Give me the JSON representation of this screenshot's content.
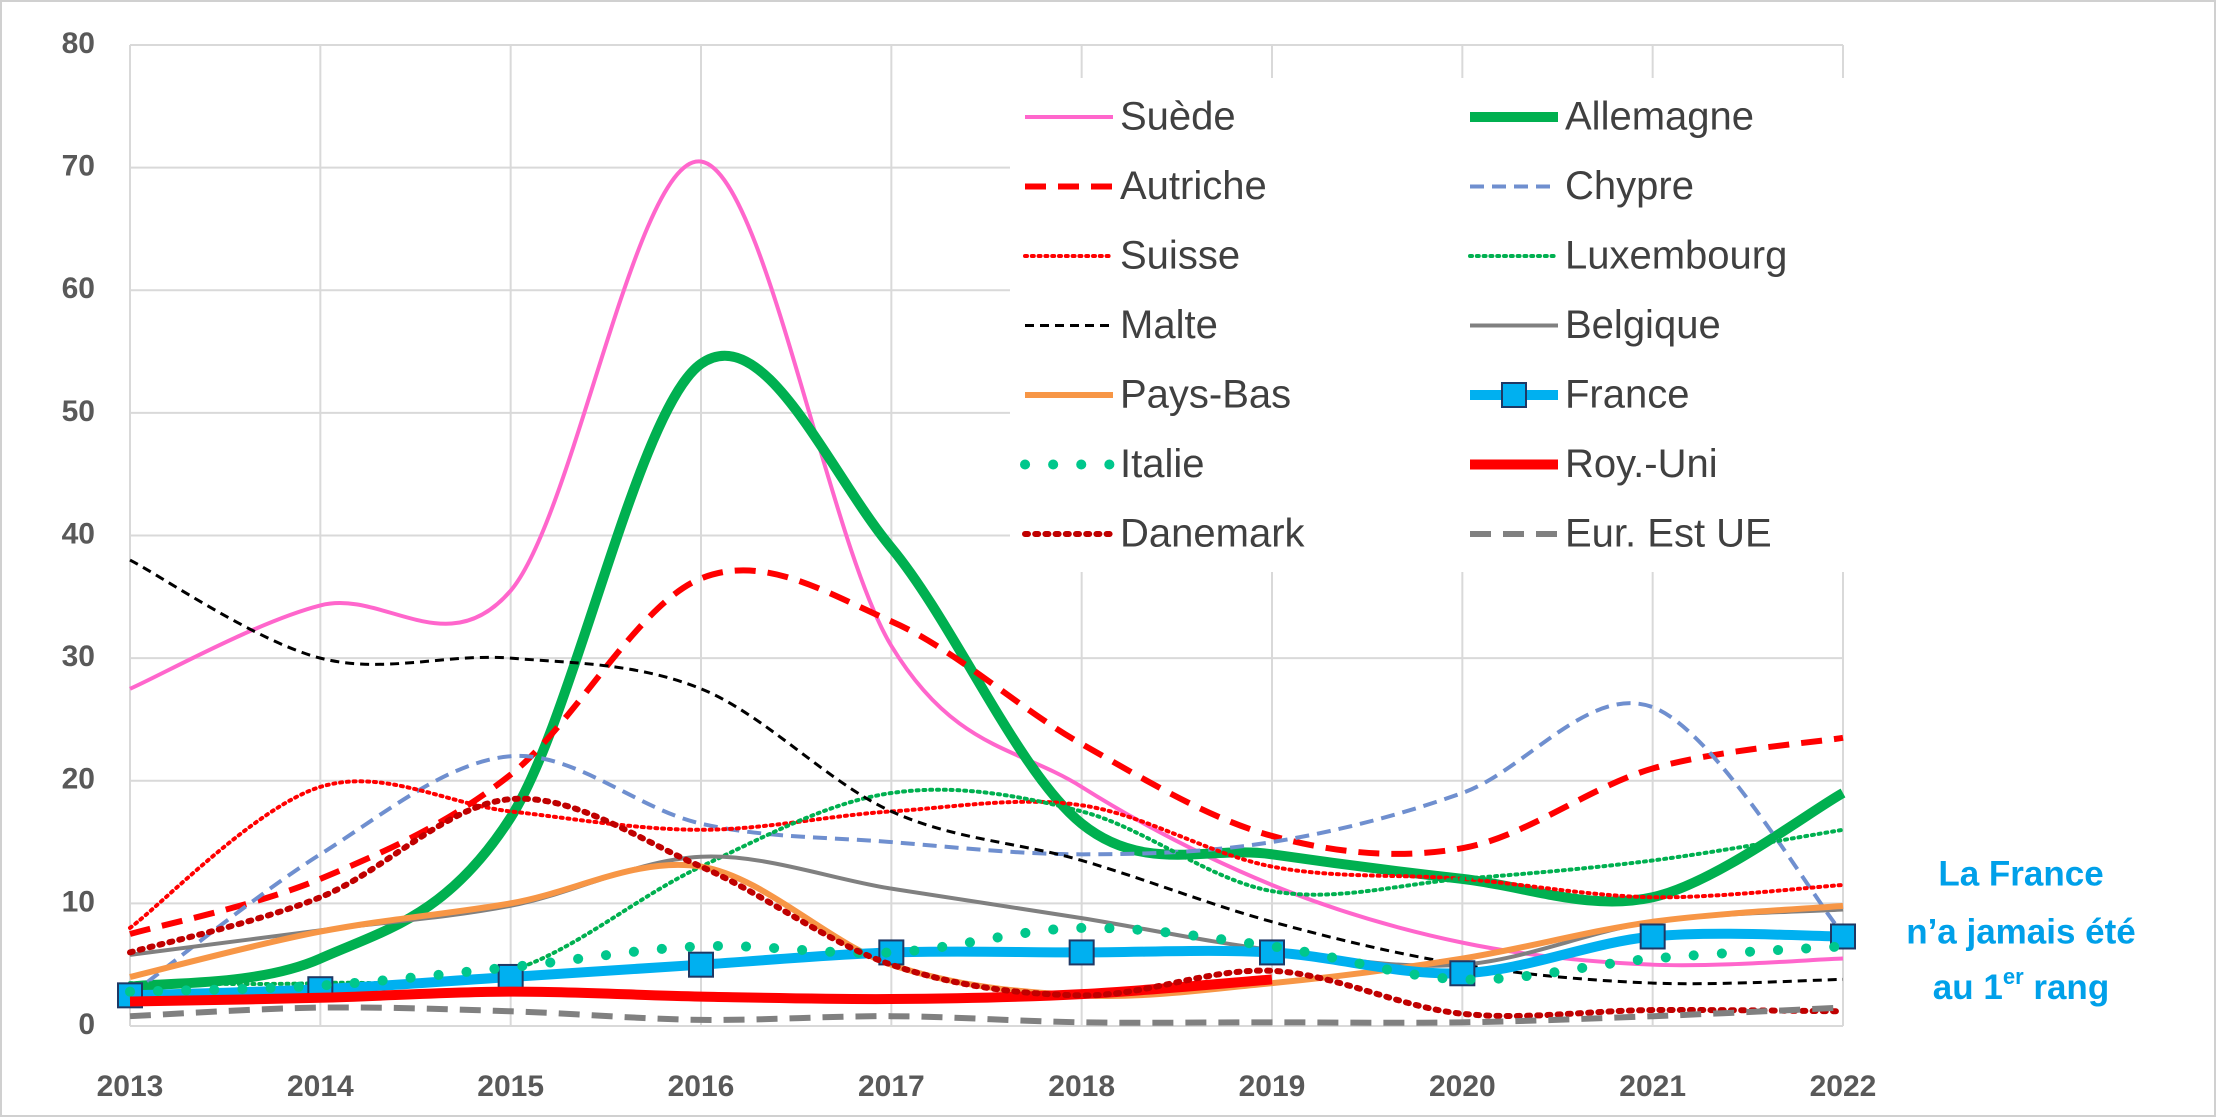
{
  "chart_data": {
    "type": "line",
    "x": [
      2013,
      2014,
      2015,
      2016,
      2017,
      2018,
      2019,
      2020,
      2021,
      2022
    ],
    "xlim": [
      2013,
      2022
    ],
    "xticks": [
      2013,
      2014,
      2015,
      2016,
      2017,
      2018,
      2019,
      2020,
      2021,
      2022
    ],
    "ylim": [
      0,
      80
    ],
    "yticks": [
      0,
      10,
      20,
      30,
      40,
      50,
      60,
      70,
      80
    ],
    "grid": true,
    "legend": "upper right",
    "smooth": true,
    "annotation": [
      "La France",
      "n’a jamais été",
      "au 1",
      "er",
      " rang"
    ],
    "series": [
      {
        "name": "Suède",
        "color": "#ff66cc",
        "dash": "solid",
        "weight": "normal",
        "values": [
          27.5,
          34.3,
          35.5,
          70.5,
          31,
          19.5,
          11.5,
          6.8,
          5,
          5.5
        ]
      },
      {
        "name": "Allemagne",
        "color": "#00b050",
        "dash": "solid",
        "weight": "heavy",
        "values": [
          3.2,
          5.5,
          17,
          54,
          39,
          16.5,
          14,
          12,
          10.5,
          19
        ]
      },
      {
        "name": "Autriche",
        "color": "#ff0000",
        "dash": "dashed",
        "weight": "bold",
        "values": [
          7.5,
          12,
          20.5,
          36.5,
          33,
          23,
          15.5,
          14.5,
          21,
          23.5
        ]
      },
      {
        "name": "Chypre",
        "color": "#6f8fcf",
        "dash": "dashed",
        "weight": "normal",
        "values": [
          2.5,
          14,
          22,
          16.5,
          15,
          14,
          15,
          19,
          26,
          7.5
        ]
      },
      {
        "name": "Suisse",
        "color": "#ff0000",
        "dash": "dotted",
        "weight": "normal",
        "values": [
          8,
          19.5,
          17.5,
          16,
          17.5,
          18,
          13,
          12,
          10.5,
          11.5
        ]
      },
      {
        "name": "Luxembourg",
        "color": "#00b050",
        "dash": "dotted",
        "weight": "normal",
        "values": [
          3.5,
          3.5,
          4.5,
          13,
          19,
          17.5,
          11,
          12,
          13.5,
          16
        ]
      },
      {
        "name": "Malte",
        "color": "#000000",
        "dash": "finedash",
        "weight": "thin",
        "values": [
          38,
          30,
          30,
          27.5,
          17.5,
          13.5,
          8.5,
          5,
          3.5,
          3.8
        ]
      },
      {
        "name": "Belgique",
        "color": "#808080",
        "dash": "solid",
        "weight": "normal",
        "values": [
          5.8,
          7.8,
          9.8,
          13.8,
          11.2,
          8.8,
          6.2,
          5,
          8.5,
          9.5
        ]
      },
      {
        "name": "Pays-Bas",
        "color": "#f79646",
        "dash": "solid",
        "weight": "bold",
        "values": [
          4,
          7.7,
          10,
          13,
          5,
          2.5,
          3.5,
          5.5,
          8.5,
          9.8
        ]
      },
      {
        "name": "France",
        "color": "#00b0f0",
        "dash": "solid",
        "weight": "heavy",
        "marker": "square",
        "values": [
          2.5,
          3,
          4,
          5,
          6,
          6,
          6,
          4.3,
          7.3,
          7.3
        ]
      },
      {
        "name": "Italie",
        "color": "#00c78c",
        "dash": "bigdots",
        "weight": "heavy",
        "values": [
          2.8,
          3.3,
          4.8,
          6.5,
          6,
          8,
          6.5,
          3.8,
          5.5,
          6.5
        ]
      },
      {
        "name": "Roy.-Uni",
        "color": "#ff0000",
        "dash": "solid",
        "weight": "heavy",
        "values": [
          2,
          2.3,
          2.8,
          2.4,
          2.2,
          2.6,
          3.8,
          null,
          null,
          null
        ]
      },
      {
        "name": "Danemark",
        "color": "#c00000",
        "dash": "dotted",
        "weight": "bold",
        "values": [
          6,
          10.5,
          18.5,
          13,
          5,
          2.5,
          4.5,
          1,
          1.3,
          1.2
        ]
      },
      {
        "name": "Eur. Est UE",
        "color": "#808080",
        "dash": "dashed",
        "weight": "bold",
        "values": [
          0.8,
          1.5,
          1.2,
          0.5,
          0.8,
          0.3,
          0.3,
          0.3,
          0.8,
          1.5
        ]
      }
    ]
  }
}
